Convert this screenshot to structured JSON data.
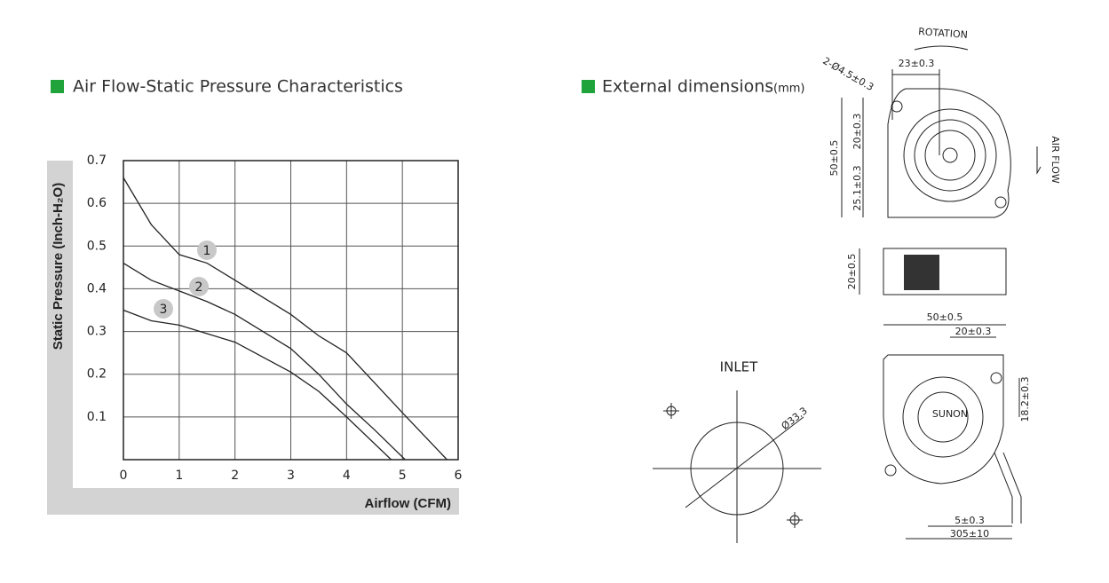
{
  "sections": [
    {
      "title": "Air Flow-Static Pressure Characteristics"
    },
    {
      "title": "External dimensions",
      "unit": "(mm)"
    }
  ],
  "chart_data": {
    "type": "line",
    "x_label": "Airflow (CFM)",
    "y_label": "Static Pressure (Inch-H₂O)",
    "xlim": [
      0,
      6
    ],
    "ylim": [
      0,
      0.7
    ],
    "xticks": [
      0,
      1,
      2,
      3,
      4,
      5,
      6
    ],
    "yticks": [
      0.1,
      0.2,
      0.3,
      0.4,
      0.5,
      0.6,
      0.7
    ],
    "grid": true,
    "series": [
      {
        "name": "1",
        "color": "#222222",
        "x": [
          0,
          0.5,
          1,
          1.5,
          2,
          2.5,
          3,
          3.5,
          4,
          4.5,
          5,
          5.8
        ],
        "values": [
          0.66,
          0.55,
          0.48,
          0.46,
          0.42,
          0.38,
          0.34,
          0.29,
          0.25,
          0.18,
          0.11,
          0
        ]
      },
      {
        "name": "2",
        "color": "#222222",
        "x": [
          0,
          0.5,
          1,
          1.5,
          2,
          2.5,
          3,
          3.5,
          4,
          4.5,
          5.05
        ],
        "values": [
          0.46,
          0.42,
          0.395,
          0.37,
          0.34,
          0.3,
          0.26,
          0.2,
          0.13,
          0.07,
          0
        ]
      },
      {
        "name": "3",
        "color": "#222222",
        "x": [
          0,
          0.5,
          1,
          1.5,
          2,
          2.5,
          3,
          3.5,
          4,
          4.8
        ],
        "values": [
          0.35,
          0.325,
          0.315,
          0.295,
          0.275,
          0.24,
          0.205,
          0.16,
          0.1,
          0
        ]
      }
    ]
  },
  "dimensions": {
    "rotation": "ROTATION",
    "top_width": "23±0.3",
    "holes": "2-Ø4.5±0.3",
    "height": "50±0.5",
    "upper": "20±0.3",
    "lower": "25.1±0.3",
    "air_flow": "AIR FLOW",
    "thickness": "20±0.5",
    "bottom_width": "50±0.5",
    "hole_offset": "20±0.3",
    "hole_height": "18.2±0.3",
    "brand": "SUNON",
    "strip": "5±0.3",
    "wire_length": "305±10",
    "inlet": "INLET",
    "inlet_diameter": "Ø33.3"
  }
}
